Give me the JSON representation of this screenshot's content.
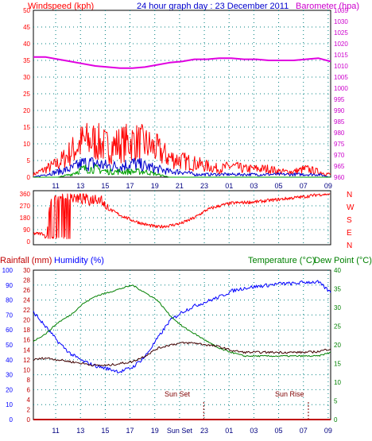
{
  "chart_data": [
    {
      "type": "line",
      "title": "24 hour graph day : 23 December 2011",
      "left_axis_label": "Windspeed (kph)",
      "right_axis_label": "Barometer (hpa)",
      "left_ylim": [
        0,
        50
      ],
      "left_ticks": [
        0,
        5,
        10,
        15,
        20,
        25,
        30,
        35,
        40,
        45,
        50
      ],
      "right_ylim": [
        960,
        1035
      ],
      "right_ticks": [
        960,
        965,
        970,
        975,
        980,
        985,
        990,
        995,
        1000,
        1005,
        1010,
        1015,
        1020,
        1025,
        1030,
        1035
      ],
      "x_tick_labels": [
        "11",
        "13",
        "15",
        "17",
        "19",
        "21",
        "23",
        "01",
        "03",
        "05",
        "07",
        "09"
      ],
      "grid": true,
      "colors": {
        "gust": "#ff0000",
        "average": "#0000cc",
        "min": "#00a000",
        "barometer": "#e000e0",
        "frame": "#000000",
        "grid": "#008080"
      },
      "series": [
        {
          "axis": "right",
          "x": [
            0,
            1,
            2,
            3,
            4,
            5,
            6,
            7,
            8,
            9,
            10,
            11,
            12,
            13,
            14,
            15,
            16,
            17,
            18,
            19,
            20,
            21,
            22,
            23,
            24
          ],
          "values": [
            1014,
            1014,
            1013,
            1012,
            1011,
            1010,
            1009.5,
            1009,
            1009,
            1009.5,
            1010.5,
            1011.5,
            1012,
            1013,
            1013,
            1013.5,
            1013.5,
            1013,
            1013,
            1012.5,
            1012.5,
            1012.5,
            1013,
            1013.5,
            1012
          ]
        },
        {
          "axis": "left",
          "x": [
            0,
            1,
            2,
            3,
            4,
            5,
            6,
            7,
            8,
            9,
            10,
            11,
            12,
            13,
            14,
            15,
            16,
            17,
            18,
            19,
            20,
            21,
            22,
            23,
            24
          ],
          "values": [
            1,
            3,
            5,
            9,
            13,
            13,
            11,
            12,
            13,
            12,
            10,
            7,
            6,
            5,
            4,
            3,
            4,
            3,
            3,
            3,
            2,
            2,
            3,
            2,
            1
          ]
        },
        {
          "axis": "left",
          "x": [
            0,
            1,
            2,
            3,
            4,
            5,
            6,
            7,
            8,
            9,
            10,
            11,
            12,
            13,
            14,
            15,
            16,
            17,
            18,
            19,
            20,
            21,
            22,
            23,
            24
          ],
          "values": [
            0,
            1,
            2,
            3,
            5,
            5,
            4,
            4,
            5,
            4,
            3,
            2,
            2,
            1,
            1,
            1,
            1,
            1,
            1,
            1,
            1,
            1,
            1,
            1,
            0
          ]
        },
        {
          "axis": "left",
          "x": [
            0,
            1,
            2,
            3,
            4,
            5,
            6,
            7,
            8,
            9,
            10,
            11,
            12,
            13,
            14,
            15,
            16,
            17,
            18,
            19,
            20,
            21,
            22,
            23,
            24
          ],
          "values": [
            0,
            0,
            0,
            1,
            3,
            3,
            2,
            2,
            2,
            2,
            1,
            0,
            0,
            0,
            0,
            0,
            0,
            0,
            0,
            0,
            0,
            0,
            0,
            0,
            0
          ]
        }
      ]
    },
    {
      "type": "line",
      "right_axis_labels": [
        "N",
        "W",
        "S",
        "E",
        "N"
      ],
      "left_ticks": [
        0,
        90,
        180,
        270,
        360
      ],
      "ylim": [
        0,
        360
      ],
      "series": [
        {
          "x": [
            0,
            0.8,
            1,
            1.5,
            2,
            2.5,
            3,
            3.5,
            4,
            4.5,
            5,
            5.5,
            6,
            7,
            8,
            9,
            10,
            11,
            12,
            13,
            14,
            15,
            16,
            17,
            18,
            19,
            20,
            21,
            22,
            23,
            24
          ],
          "values": [
            60,
            60,
            30,
            340,
            340,
            330,
            340,
            320,
            330,
            310,
            330,
            320,
            250,
            200,
            160,
            130,
            110,
            120,
            140,
            180,
            240,
            270,
            290,
            295,
            300,
            310,
            320,
            330,
            340,
            355,
            360
          ]
        }
      ]
    },
    {
      "type": "line",
      "rain_axis_label": "Rainfall (mm)",
      "humidity_axis_label": "Humidity (%)",
      "temperature_axis_label": "Temperature (°C)",
      "dew_axis_label": "Dew Point (°C)",
      "humidity_ticks": [
        0,
        10,
        20,
        30,
        40,
        50,
        60,
        70,
        80,
        90,
        100
      ],
      "rain_ticks": [
        0,
        2,
        4,
        6,
        8,
        10,
        12,
        14,
        16,
        18,
        20,
        22,
        24,
        26,
        28,
        30
      ],
      "temperature_ticks": [
        0,
        5,
        10,
        15,
        20,
        25,
        30,
        35,
        40
      ],
      "ylim": [
        0,
        100
      ],
      "temperature_ylim": [
        0,
        40
      ],
      "x_tick_labels": [
        "11",
        "13",
        "15",
        "17",
        "19",
        "Sun Set",
        "23",
        "01",
        "03",
        "05",
        "07",
        "09"
      ],
      "annotations": [
        "Sun Set",
        "Sun Rise"
      ],
      "sun_set_x": 13.75,
      "sun_rise_x": 22.2,
      "colors": {
        "humidity": "#0000ff",
        "temperature": "#008000",
        "dewpoint": "#400000",
        "rain": "#c00000"
      },
      "series": [
        {
          "x": [
            0,
            1,
            2,
            3,
            4,
            5,
            6,
            7,
            8,
            9,
            10,
            11,
            12,
            13,
            14,
            15,
            16,
            17,
            18,
            19,
            20,
            21,
            22,
            23,
            24
          ],
          "values": [
            72,
            62,
            52,
            44,
            39,
            36,
            34,
            32,
            35,
            42,
            54,
            66,
            72,
            76,
            79,
            82,
            86,
            88,
            89,
            90,
            91,
            91,
            92,
            92,
            85
          ]
        },
        {
          "x": [
            0,
            1,
            2,
            3,
            4,
            5,
            6,
            7,
            8,
            9,
            10,
            11,
            12,
            13,
            14,
            15,
            16,
            17,
            18,
            19,
            20,
            21,
            22,
            23,
            24
          ],
          "values": [
            21,
            23,
            26,
            28,
            31,
            33,
            34,
            35,
            36,
            34,
            32,
            28,
            25,
            23,
            21,
            19,
            18,
            17,
            17,
            17,
            17,
            17,
            17,
            17,
            18
          ]
        },
        {
          "x": [
            0,
            1,
            2,
            3,
            4,
            5,
            6,
            7,
            8,
            9,
            10,
            11,
            12,
            13,
            14,
            15,
            16,
            17,
            18,
            19,
            20,
            21,
            22,
            23,
            24
          ],
          "values": [
            16,
            16.5,
            16,
            15.5,
            15,
            14.5,
            14.5,
            15,
            15.5,
            17,
            19,
            20,
            20.5,
            20.5,
            20,
            19.5,
            18.5,
            18,
            18,
            18,
            18,
            18,
            18,
            18.2,
            19
          ]
        },
        {
          "x": [
            0,
            24
          ],
          "values": [
            0,
            0
          ]
        }
      ]
    }
  ]
}
